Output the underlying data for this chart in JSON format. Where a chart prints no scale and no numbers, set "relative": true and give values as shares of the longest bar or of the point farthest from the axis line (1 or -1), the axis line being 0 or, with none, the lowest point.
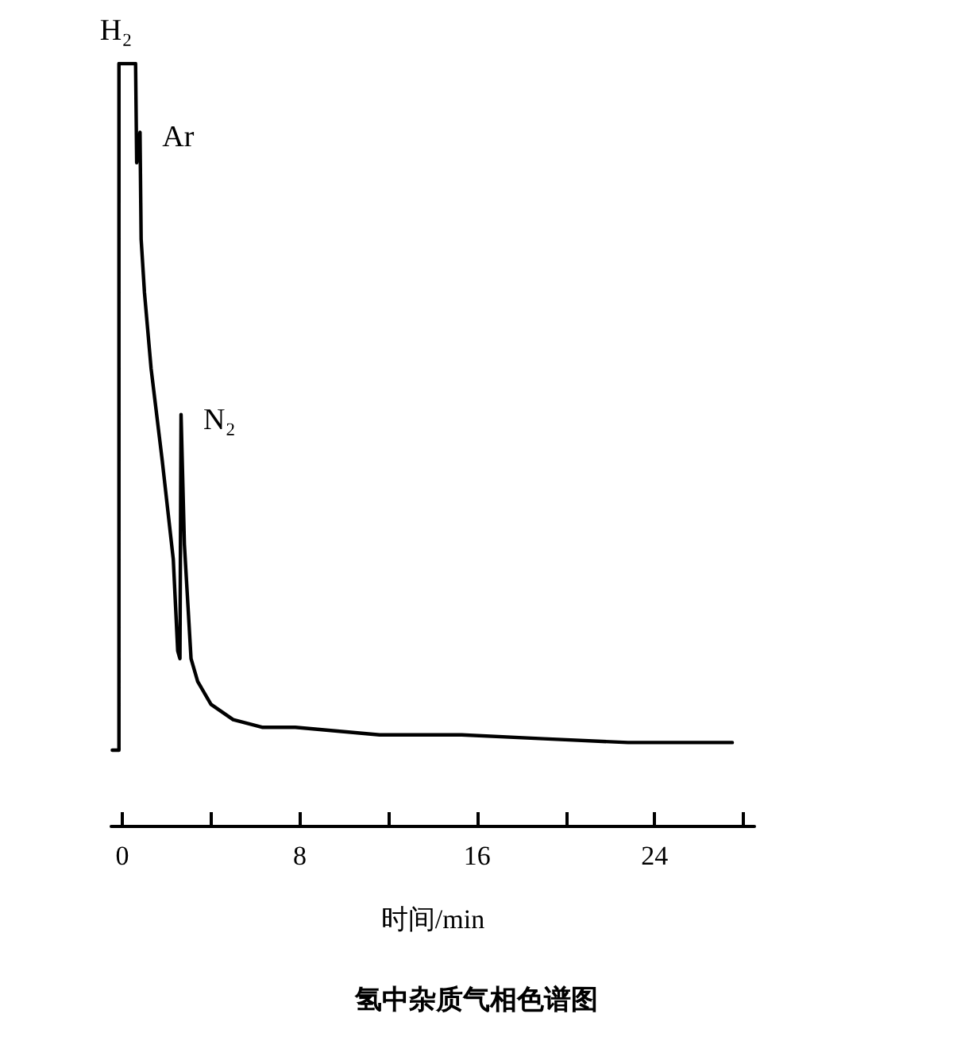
{
  "chart_data": {
    "type": "line",
    "title": "氢中杂质气相色谱图",
    "xlabel": "时间/min",
    "relative": true,
    "marker": "none",
    "line_style": "solid",
    "xlim": [
      -0.5,
      28.5
    ],
    "xticks": [
      0,
      {
        "value": 4,
        "label": null
      },
      8,
      {
        "value": 12,
        "label": null
      },
      16,
      {
        "value": 20,
        "label": null
      },
      24,
      {
        "value": 28,
        "label": null
      }
    ],
    "series": [
      {
        "color": "#000000",
        "x": [
          -0.45,
          -0.15,
          -0.15,
          0.6,
          0.65,
          0.8,
          0.85,
          1.0,
          1.3,
          1.8,
          2.3,
          2.5,
          2.6,
          2.65,
          2.8,
          3.1,
          3.4,
          4.0,
          5.0,
          6.3,
          7.8,
          11.6,
          15.3,
          19.0,
          22.8,
          27.5
        ],
        "values": [
          0.1,
          0.1,
          1,
          1,
          0.87,
          0.91,
          0.77,
          0.7,
          0.6,
          0.48,
          0.35,
          0.23,
          0.22,
          0.54,
          0.37,
          0.22,
          0.19,
          0.16,
          0.14,
          0.13,
          0.13,
          0.12,
          0.12,
          0.115,
          0.11,
          0.11
        ]
      }
    ],
    "annotations": [
      {
        "text": "H₂",
        "x": -0.15,
        "y": 1
      },
      {
        "text": "Ar",
        "x": 0.8,
        "y": 0.91
      },
      {
        "text": "N₂",
        "x": 2.65,
        "y": 0.54
      }
    ]
  }
}
